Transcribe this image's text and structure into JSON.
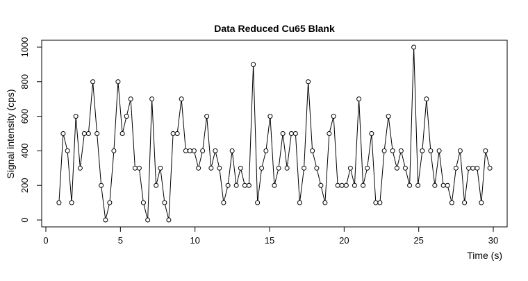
{
  "chart_data": {
    "type": "line",
    "title": "Data Reduced Cu65 Blank",
    "x_label": "Time (s)",
    "y_label": "Signal intensity (cps)",
    "x": [
      0.88,
      1.16,
      1.45,
      1.73,
      2.01,
      2.3,
      2.58,
      2.86,
      3.15,
      3.43,
      3.71,
      4.0,
      4.28,
      4.56,
      4.84,
      5.13,
      5.41,
      5.69,
      5.98,
      6.26,
      6.54,
      6.83,
      7.11,
      7.39,
      7.68,
      7.96,
      8.24,
      8.53,
      8.81,
      9.09,
      9.38,
      9.66,
      9.94,
      10.23,
      10.51,
      10.79,
      11.08,
      11.36,
      11.64,
      11.92,
      12.21,
      12.49,
      12.77,
      13.06,
      13.34,
      13.62,
      13.91,
      14.19,
      14.47,
      14.76,
      15.04,
      15.32,
      15.61,
      15.89,
      16.17,
      16.46,
      16.74,
      17.02,
      17.31,
      17.59,
      17.87,
      18.16,
      18.44,
      18.72,
      19.0,
      19.29,
      19.57,
      19.85,
      20.14,
      20.42,
      20.7,
      20.99,
      21.27,
      21.55,
      21.84,
      22.12,
      22.4,
      22.69,
      22.97,
      23.25,
      23.54,
      23.82,
      24.1,
      24.39,
      24.67,
      24.95,
      25.24,
      25.52,
      25.8,
      26.08,
      26.37,
      26.65,
      26.93,
      27.22,
      27.5,
      27.78,
      28.07,
      28.35,
      28.63,
      28.92,
      29.2,
      29.48,
      29.77
    ],
    "series": [
      {
        "color": "#000000",
        "values": [
          100,
          500,
          400,
          100,
          600,
          300,
          500,
          500,
          800,
          500,
          200,
          0,
          100,
          400,
          800,
          500,
          600,
          700,
          300,
          300,
          100,
          0,
          700,
          200,
          300,
          100,
          0,
          500,
          500,
          700,
          400,
          400,
          400,
          300,
          400,
          600,
          300,
          400,
          300,
          100,
          200,
          400,
          200,
          300,
          200,
          200,
          900,
          100,
          300,
          400,
          600,
          200,
          300,
          500,
          300,
          500,
          500,
          100,
          300,
          800,
          400,
          300,
          200,
          100,
          500,
          600,
          200,
          200,
          200,
          300,
          200,
          700,
          200,
          300,
          500,
          100,
          100,
          400,
          600,
          400,
          300,
          400,
          300,
          200,
          1000,
          200,
          400,
          700,
          400,
          200,
          400,
          200,
          200,
          100,
          300,
          400,
          100,
          300,
          300,
          300,
          100,
          400,
          300
        ]
      }
    ],
    "xlim": [
      -0.28,
      30.93
    ],
    "xticks": [
      0,
      5,
      10,
      15,
      20,
      25,
      30
    ],
    "ylim": [
      -40,
      1040
    ],
    "yticks": [
      0,
      200,
      400,
      600,
      800,
      1000
    ]
  }
}
